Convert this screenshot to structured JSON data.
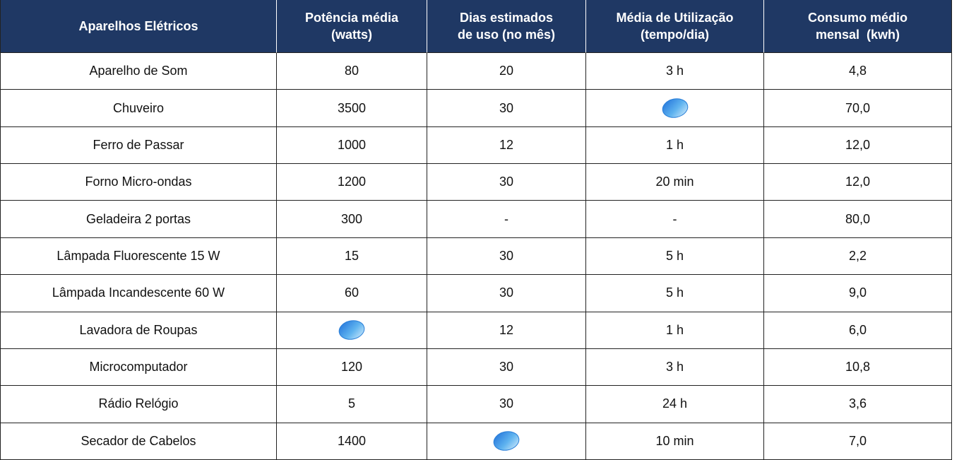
{
  "table": {
    "header": [
      [
        "Aparelhos Elétricos"
      ],
      [
        "Potência média",
        "(watts)"
      ],
      [
        "Dias estimados",
        "de uso (no mês)"
      ],
      [
        "Média de Utilização",
        "(tempo/dia)"
      ],
      [
        "Consumo médio",
        "mensal  (kwh)"
      ]
    ],
    "rows": [
      [
        "Aparelho de Som",
        "80",
        "20",
        "3 h",
        "4,8"
      ],
      [
        "Chuveiro",
        "3500",
        "30",
        null,
        "70,0"
      ],
      [
        "Ferro de Passar",
        "1000",
        "12",
        "1 h",
        "12,0"
      ],
      [
        "Forno Micro-ondas",
        "1200",
        "30",
        "20 min",
        "12,0"
      ],
      [
        "Geladeira 2 portas",
        "300",
        "-",
        "-",
        "80,0"
      ],
      [
        "Lâmpada Fluorescente 15 W",
        "15",
        "30",
        "5 h",
        "2,2"
      ],
      [
        "Lâmpada Incandescente 60 W",
        "60",
        "30",
        "5 h",
        "9,0"
      ],
      [
        "Lavadora de Roupas",
        null,
        "12",
        "1 h",
        "6,0"
      ],
      [
        "Microcomputador",
        "120",
        "30",
        "3 h",
        "10,8"
      ],
      [
        "Rádio Relógio",
        "5",
        "30",
        "24 h",
        "3,6"
      ],
      [
        "Secador de Cabelos",
        "1400",
        null,
        "10 min",
        "7,0"
      ]
    ]
  }
}
